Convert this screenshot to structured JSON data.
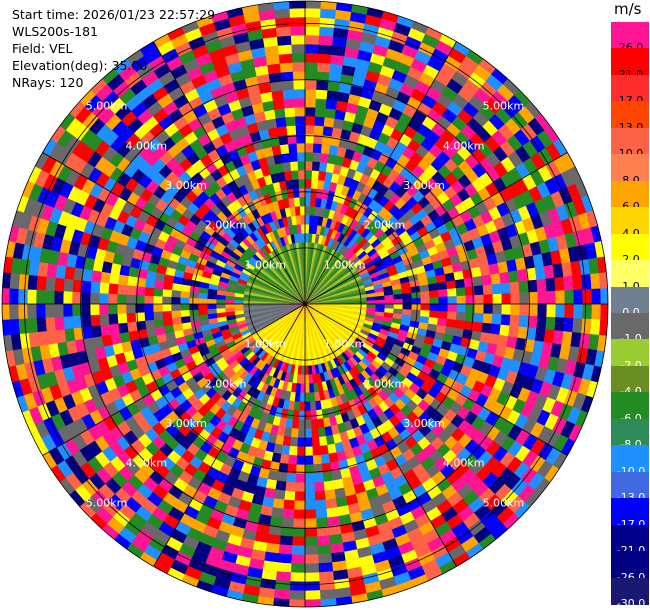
{
  "info": {
    "start_time_label": "Start time:",
    "start_time": "2026/01/23 22:57:29",
    "instrument": "WLS200s-181",
    "field_label": "Field:",
    "field": "VEL",
    "elevation_label": "Elevation(deg):",
    "elevation": "35.00",
    "nrays_label": "NRays:",
    "nrays": "120"
  },
  "colorbar": {
    "unit": "m/s",
    "levels": [
      {
        "label": "26.0",
        "color": "#ff1493"
      },
      {
        "label": "21.0",
        "color": "#ff0000"
      },
      {
        "label": "17.0",
        "color": "#ff2d2d"
      },
      {
        "label": "13.0",
        "color": "#ff4500"
      },
      {
        "label": "10.0",
        "color": "#ff6347"
      },
      {
        "label": "8.0",
        "color": "#ff7f50"
      },
      {
        "label": "6.0",
        "color": "#ffa500"
      },
      {
        "label": "4.0",
        "color": "#ffd700"
      },
      {
        "label": "2.0",
        "color": "#ffff00"
      },
      {
        "label": "1.0",
        "color": "#ffff66"
      },
      {
        "label": "0.0",
        "color": "#708090"
      },
      {
        "label": "-1.0",
        "color": "#696969"
      },
      {
        "label": "-2.0",
        "color": "#9acd32"
      },
      {
        "label": "-4.0",
        "color": "#6b8e23"
      },
      {
        "label": "-6.0",
        "color": "#228b22"
      },
      {
        "label": "-8.0",
        "color": "#2e8b57"
      },
      {
        "label": "-10.0",
        "color": "#1e90ff"
      },
      {
        "label": "-13.0",
        "color": "#4169e1"
      },
      {
        "label": "-17.0",
        "color": "#0000ff"
      },
      {
        "label": "-21.0",
        "color": "#00008b"
      },
      {
        "label": "-26.0",
        "color": "#000080"
      },
      {
        "label": "-30.0",
        "color": "#191970"
      }
    ]
  },
  "chart_data": {
    "type": "heatmap",
    "projection": "polar (PPI)",
    "field": "VEL",
    "units": "m/s",
    "nrays": 120,
    "range_rings_km": [
      1.0,
      2.0,
      3.0,
      4.0,
      5.0
    ],
    "range_ring_labels": [
      "1.00km",
      "2.00km",
      "3.00km",
      "4.00km",
      "5.00km"
    ],
    "max_range_km": 5.4,
    "spoke_interval_deg": 30,
    "near_field": {
      "outer_km": 1.1,
      "north_half_colors": [
        "#9acd32",
        "#6b8e23",
        "#228b22"
      ],
      "south_half_colors": [
        "#ffff00",
        "#ffd700"
      ],
      "west_slice_colors": [
        "#708090",
        "#696969"
      ]
    },
    "far_field_palette": [
      "#ff1493",
      "#ff0000",
      "#ffa500",
      "#ffff00",
      "#0000ff",
      "#000080",
      "#1e90ff",
      "#ff6347",
      "#228b22",
      "#696969"
    ]
  }
}
